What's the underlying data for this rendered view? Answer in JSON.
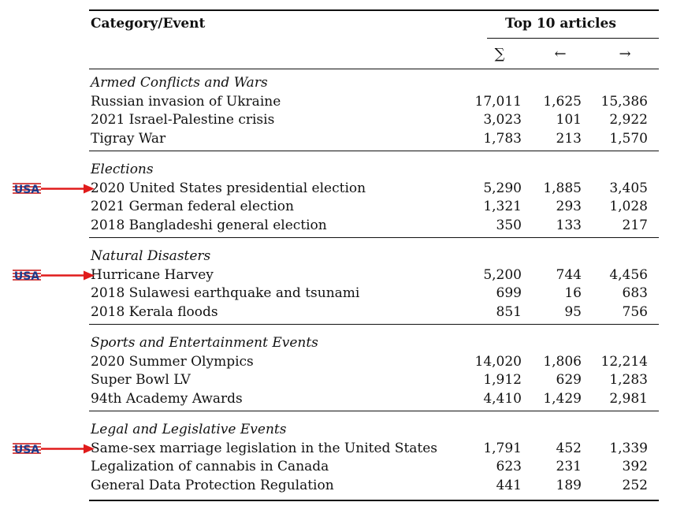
{
  "header": {
    "category_label": "Category/Event",
    "group_label": "Top 10 articles",
    "col_sum": "∑",
    "col_left": "←",
    "col_right": "→"
  },
  "marker": {
    "flag_text": "USA",
    "flag_color": "#1f3a8a",
    "stripe_color": "#cc1f1f",
    "arrow_color": "#e01b1b"
  },
  "sections": [
    {
      "title": "Armed Conflicts and Wars",
      "rows": [
        {
          "event": "Russian invasion of Ukraine",
          "sum": "17,011",
          "in": "1,625",
          "out": "15,386",
          "usa": false
        },
        {
          "event": "2021 Israel-Palestine crisis",
          "sum": "3,023",
          "in": "101",
          "out": "2,922",
          "usa": false
        },
        {
          "event": "Tigray War",
          "sum": "1,783",
          "in": "213",
          "out": "1,570",
          "usa": false
        }
      ]
    },
    {
      "title": "Elections",
      "rows": [
        {
          "event": "2020 United States presidential election",
          "sum": "5,290",
          "in": "1,885",
          "out": "3,405",
          "usa": true
        },
        {
          "event": "2021 German federal election",
          "sum": "1,321",
          "in": "293",
          "out": "1,028",
          "usa": false
        },
        {
          "event": "2018 Bangladeshi general election",
          "sum": "350",
          "in": "133",
          "out": "217",
          "usa": false
        }
      ]
    },
    {
      "title": "Natural Disasters",
      "rows": [
        {
          "event": "Hurricane Harvey",
          "sum": "5,200",
          "in": "744",
          "out": "4,456",
          "usa": true
        },
        {
          "event": "2018 Sulawesi earthquake and tsunami",
          "sum": "699",
          "in": "16",
          "out": "683",
          "usa": false
        },
        {
          "event": "2018 Kerala floods",
          "sum": "851",
          "in": "95",
          "out": "756",
          "usa": false
        }
      ]
    },
    {
      "title": "Sports and Entertainment Events",
      "rows": [
        {
          "event": "2020 Summer Olympics",
          "sum": "14,020",
          "in": "1,806",
          "out": "12,214",
          "usa": false
        },
        {
          "event": "Super Bowl LV",
          "sum": "1,912",
          "in": "629",
          "out": "1,283",
          "usa": false
        },
        {
          "event": "94th Academy Awards",
          "sum": "4,410",
          "in": "1,429",
          "out": "2,981",
          "usa": false
        }
      ]
    },
    {
      "title": "Legal and Legislative Events",
      "rows": [
        {
          "event": "Same-sex marriage legislation in the United States",
          "sum": "1,791",
          "in": "452",
          "out": "1,339",
          "usa": true
        },
        {
          "event": "Legalization of cannabis in Canada",
          "sum": "623",
          "in": "231",
          "out": "392",
          "usa": false
        },
        {
          "event": "General Data Protection Regulation",
          "sum": "441",
          "in": "189",
          "out": "252",
          "usa": false
        }
      ]
    }
  ]
}
